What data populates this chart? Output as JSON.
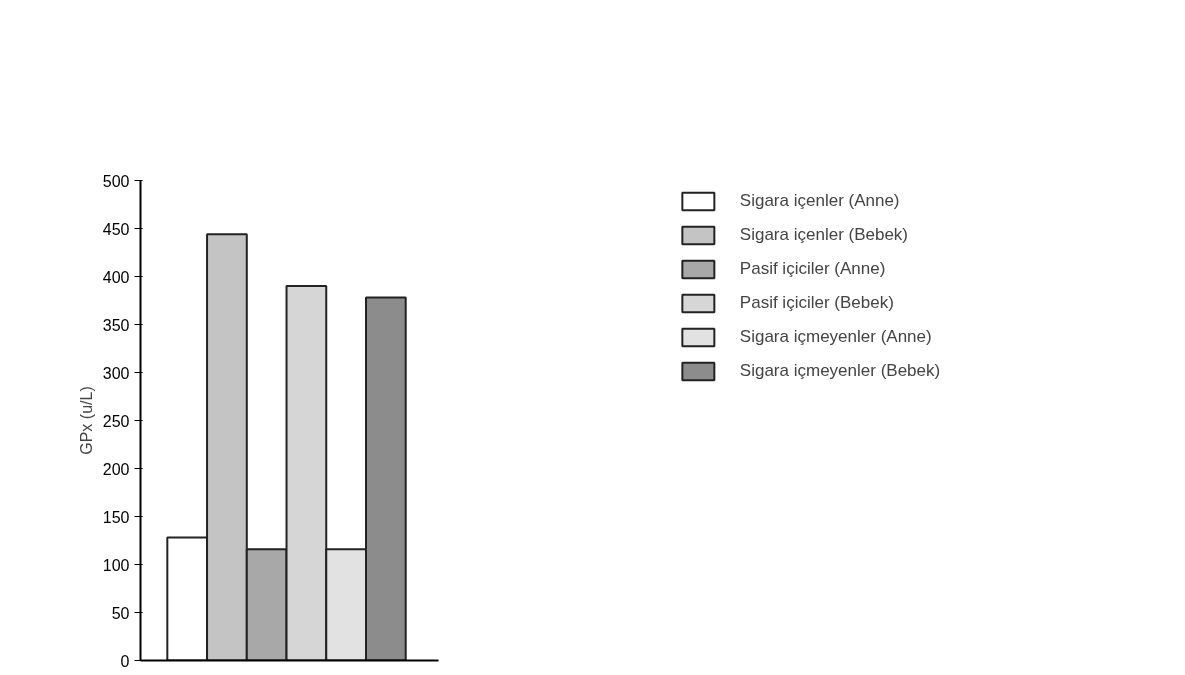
{
  "chart_data": {
    "type": "bar",
    "ylabel": "GPx (u/L)",
    "categories": [
      null
    ],
    "series": [
      {
        "name": "Sigara içenler (Anne)",
        "color": "#ffffff",
        "values": [
          128
        ]
      },
      {
        "name": "Sigara içenler (Bebek)",
        "color": "#c4c4c4",
        "values": [
          444
        ]
      },
      {
        "name": "Pasif içiciler (Anne)",
        "color": "#a8a8a8",
        "values": [
          116
        ]
      },
      {
        "name": "Pasif içiciler (Bebek)",
        "color": "#d6d6d6",
        "values": [
          390
        ]
      },
      {
        "name": "Sigara içmeyenler (Anne)",
        "color": "#e2e2e2",
        "values": [
          116
        ]
      },
      {
        "name": "Sigara içmeyenler (Bebek)",
        "color": "#8c8c8c",
        "values": [
          378
        ]
      }
    ],
    "ylim": [
      0,
      500
    ],
    "yticks": [
      0,
      50,
      100,
      150,
      200,
      250,
      300,
      350,
      400,
      450,
      500
    ],
    "legend": "top right",
    "grid": false
  }
}
